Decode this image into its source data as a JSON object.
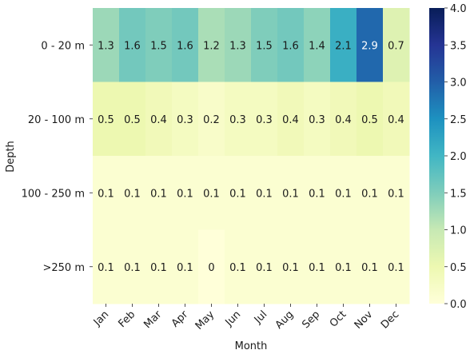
{
  "chart_data": {
    "type": "heatmap",
    "title": "",
    "xlabel": "Month",
    "ylabel": "Depth",
    "x": [
      "Jan",
      "Feb",
      "Mar",
      "Apr",
      "May",
      "Jun",
      "Jul",
      "Aug",
      "Sep",
      "Oct",
      "Nov",
      "Dec"
    ],
    "y": [
      "0 - 20 m",
      "20 - 100 m",
      "100 - 250 m",
      ">250 m"
    ],
    "values": [
      [
        1.3,
        1.6,
        1.5,
        1.6,
        1.2,
        1.3,
        1.5,
        1.6,
        1.4,
        2.1,
        2.9,
        0.7
      ],
      [
        0.5,
        0.5,
        0.4,
        0.3,
        0.2,
        0.3,
        0.3,
        0.4,
        0.3,
        0.4,
        0.5,
        0.4
      ],
      [
        0.1,
        0.1,
        0.1,
        0.1,
        0.1,
        0.1,
        0.1,
        0.1,
        0.1,
        0.1,
        0.1,
        0.1
      ],
      [
        0.1,
        0.1,
        0.1,
        0.1,
        0,
        0.1,
        0.1,
        0.1,
        0.1,
        0.1,
        0.1,
        0.1
      ]
    ],
    "labels": [
      [
        "1.3",
        "1.6",
        "1.5",
        "1.6",
        "1.2",
        "1.3",
        "1.5",
        "1.6",
        "1.4",
        "2.1",
        "2.9",
        "0.7"
      ],
      [
        "0.5",
        "0.5",
        "0.4",
        "0.3",
        "0.2",
        "0.3",
        "0.3",
        "0.4",
        "0.3",
        "0.4",
        "0.5",
        "0.4"
      ],
      [
        "0.1",
        "0.1",
        "0.1",
        "0.1",
        "0.1",
        "0.1",
        "0.1",
        "0.1",
        "0.1",
        "0.1",
        "0.1",
        "0.1"
      ],
      [
        "0.1",
        "0.1",
        "0.1",
        "0.1",
        "0",
        "0.1",
        "0.1",
        "0.1",
        "0.1",
        "0.1",
        "0.1",
        "0.1"
      ]
    ],
    "colorscale": "YlGnBu",
    "vmin": 0,
    "vmax": 4,
    "colorbar_ticks": [
      "0.0",
      "0.5",
      "1.0",
      "1.5",
      "2.0",
      "2.5",
      "3.0",
      "3.5",
      "4.0"
    ],
    "colorbar_tick_values": [
      0,
      0.5,
      1,
      1.5,
      2,
      2.5,
      3,
      3.5,
      4
    ],
    "colorbar_location": "right",
    "grid": false
  }
}
